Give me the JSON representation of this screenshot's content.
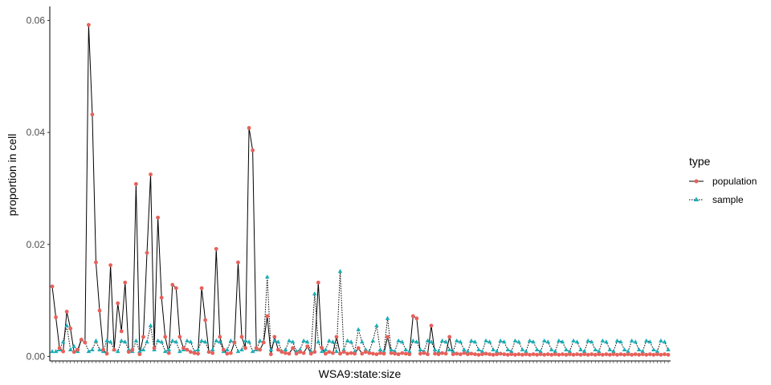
{
  "chart_data": {
    "type": "line",
    "title": "",
    "xlabel": "WSA9:state:size",
    "ylabel": "proportion in cell",
    "ylim": [
      -0.0008,
      0.0625
    ],
    "yticks": [
      0.0,
      0.02,
      0.04,
      0.06
    ],
    "ytick_labels": [
      "0.00",
      "0.02",
      "0.04",
      "0.06"
    ],
    "x_category_count": 170,
    "x_tick_labels_shown": false,
    "grid": false,
    "legend": {
      "title": "type",
      "position": "right"
    },
    "series": [
      {
        "name": "population",
        "line_style": "solid",
        "marker": "circle",
        "marker_color": "#E8605A",
        "line_color": "#000000",
        "values": [
          0.0125,
          0.007,
          0.0015,
          0.0009,
          0.008,
          0.005,
          0.0008,
          0.0012,
          0.003,
          0.0025,
          0.0592,
          0.0432,
          0.0168,
          0.0082,
          0.0012,
          0.0005,
          0.0163,
          0.0012,
          0.0095,
          0.0045,
          0.0132,
          0.0008,
          0.0012,
          0.0308,
          0.0004,
          0.0035,
          0.0185,
          0.0325,
          0.0015,
          0.0248,
          0.0105,
          0.0035,
          0.0006,
          0.0128,
          0.0122,
          0.0035,
          0.0015,
          0.0012,
          0.0008,
          0.0006,
          0.0005,
          0.0122,
          0.0065,
          0.0008,
          0.0006,
          0.0192,
          0.0035,
          0.0012,
          0.0005,
          0.0006,
          0.0025,
          0.0168,
          0.0035,
          0.0015,
          0.0408,
          0.0368,
          0.0015,
          0.0012,
          0.0025,
          0.0072,
          0.0004,
          0.0035,
          0.0012,
          0.0008,
          0.0006,
          0.0005,
          0.0015,
          0.0005,
          0.0008,
          0.0006,
          0.0018,
          0.0005,
          0.0008,
          0.0132,
          0.0015,
          0.0005,
          0.0008,
          0.0006,
          0.0035,
          0.0005,
          0.0008,
          0.0005,
          0.0006,
          0.0005,
          0.0015,
          0.0005,
          0.0008,
          0.0006,
          0.0005,
          0.0004,
          0.0006,
          0.0005,
          0.0035,
          0.0006,
          0.0005,
          0.0004,
          0.0006,
          0.0005,
          0.0004,
          0.0072,
          0.0068,
          0.0005,
          0.0006,
          0.0004,
          0.0055,
          0.0005,
          0.0004,
          0.0006,
          0.0005,
          0.0035,
          0.0004,
          0.0005,
          0.0004,
          0.0006,
          0.0004,
          0.0005,
          0.0004,
          0.0003,
          0.0004,
          0.0005,
          0.0004,
          0.0003,
          0.0004,
          0.0005,
          0.0004,
          0.0003,
          0.0004,
          0.0003,
          0.0004,
          0.0003,
          0.0004,
          0.0003,
          0.0004,
          0.0003,
          0.0004,
          0.0003,
          0.0004,
          0.0003,
          0.0004,
          0.0003,
          0.0004,
          0.0003,
          0.0004,
          0.0003,
          0.0004,
          0.0003,
          0.0004,
          0.0003,
          0.0004,
          0.0003,
          0.0004,
          0.0003,
          0.0004,
          0.0003,
          0.0004,
          0.0003,
          0.0004,
          0.0003,
          0.0004,
          0.0003,
          0.0004,
          0.0003,
          0.0004,
          0.0003,
          0.0004,
          0.0003,
          0.0004,
          0.0003,
          0.0004,
          0.0003
        ]
      },
      {
        "name": "sample",
        "line_style": "dotted",
        "marker": "triangle",
        "marker_color": "#1AAFB8",
        "line_color": "#000000",
        "values": [
          0.0009,
          0.0009,
          0.0012,
          0.0026,
          0.0055,
          0.0012,
          0.0018,
          0.0009,
          0.003,
          0.0026,
          0.0009,
          0.0012,
          0.0028,
          0.0012,
          0.0009,
          0.0028,
          0.0026,
          0.0012,
          0.0009,
          0.0028,
          0.0026,
          0.0012,
          0.0009,
          0.0028,
          0.0009,
          0.0012,
          0.0026,
          0.0055,
          0.0012,
          0.0028,
          0.0026,
          0.0009,
          0.0012,
          0.0028,
          0.0026,
          0.0009,
          0.0012,
          0.0028,
          0.0026,
          0.0009,
          0.0012,
          0.0028,
          0.0026,
          0.0009,
          0.0012,
          0.0028,
          0.0026,
          0.0009,
          0.0012,
          0.0028,
          0.0026,
          0.0009,
          0.0012,
          0.0028,
          0.0026,
          0.0009,
          0.0012,
          0.0028,
          0.0026,
          0.0142,
          0.0012,
          0.0028,
          0.0026,
          0.0009,
          0.0012,
          0.0028,
          0.0026,
          0.0009,
          0.0012,
          0.0028,
          0.0026,
          0.0009,
          0.0112,
          0.0026,
          0.0009,
          0.0012,
          0.0028,
          0.0026,
          0.0009,
          0.0152,
          0.0012,
          0.0028,
          0.0026,
          0.0009,
          0.0048,
          0.0026,
          0.0012,
          0.0009,
          0.0028,
          0.0055,
          0.0012,
          0.0009,
          0.0068,
          0.0012,
          0.0009,
          0.0028,
          0.0026,
          0.0012,
          0.0009,
          0.0028,
          0.0026,
          0.0012,
          0.0009,
          0.0028,
          0.0026,
          0.0012,
          0.0009,
          0.0028,
          0.0026,
          0.0012,
          0.0009,
          0.0028,
          0.0026,
          0.0012,
          0.0009,
          0.0028,
          0.0026,
          0.0012,
          0.0009,
          0.0028,
          0.0026,
          0.0012,
          0.0009,
          0.0028,
          0.0026,
          0.0012,
          0.0009,
          0.0028,
          0.0026,
          0.0012,
          0.0009,
          0.0028,
          0.0026,
          0.0012,
          0.0009,
          0.0028,
          0.0026,
          0.0012,
          0.0009,
          0.0028,
          0.0026,
          0.0012,
          0.0009,
          0.0028,
          0.0026,
          0.0012,
          0.0009,
          0.0028,
          0.0026,
          0.0012,
          0.0009,
          0.0028,
          0.0026,
          0.0012,
          0.0009,
          0.0028,
          0.0026,
          0.0012,
          0.0009,
          0.0028,
          0.0026,
          0.0012,
          0.0009,
          0.0028,
          0.0026,
          0.0012,
          0.0009,
          0.0028,
          0.0026,
          0.0012
        ]
      }
    ]
  }
}
